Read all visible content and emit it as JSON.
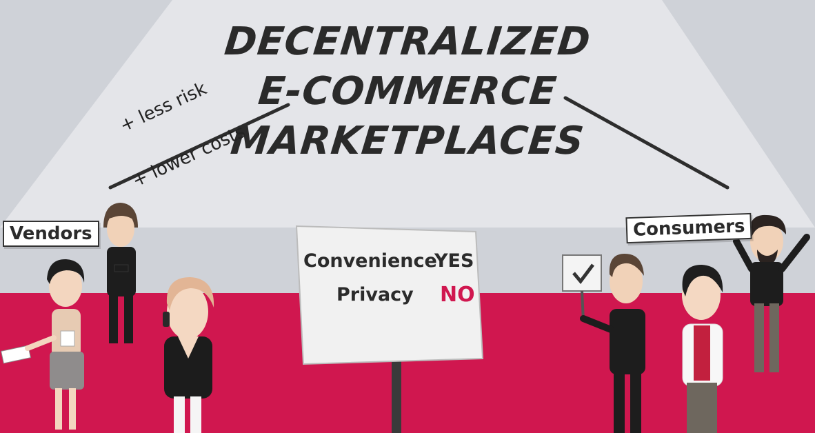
{
  "title": {
    "line1": "DECENTRALIZED",
    "line2": "E-COMMERCE",
    "line3": "MARKETPLACES"
  },
  "notes": {
    "less_risk": "+ less risk",
    "lower_costs": "+ lower costs"
  },
  "labels": {
    "vendors": "Vendors",
    "consumers": "Consumers"
  },
  "sign": {
    "convenience": "Convenience",
    "convenience_value": "YES",
    "privacy": "Privacy",
    "privacy_value": "NO"
  },
  "colors": {
    "background_top": "#cfd2d8",
    "spotlight": "#e3e4e8",
    "floor": "#d0174f",
    "accent_no": "#d0174f"
  }
}
